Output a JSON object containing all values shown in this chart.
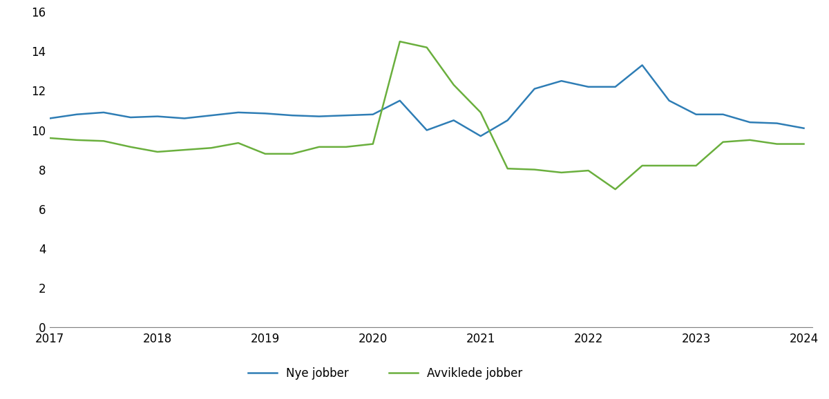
{
  "nye_jobber": {
    "label": "Nye jobber",
    "color": "#2E7DB5",
    "x": [
      2017.0,
      2017.25,
      2017.5,
      2017.75,
      2018.0,
      2018.25,
      2018.5,
      2018.75,
      2019.0,
      2019.25,
      2019.5,
      2019.75,
      2020.0,
      2020.25,
      2020.5,
      2020.75,
      2021.0,
      2021.25,
      2021.5,
      2021.75,
      2022.0,
      2022.25,
      2022.5,
      2022.75,
      2023.0,
      2023.25,
      2023.5,
      2023.75,
      2024.0
    ],
    "y": [
      10.6,
      10.8,
      10.9,
      10.65,
      10.7,
      10.6,
      10.75,
      10.9,
      10.85,
      10.75,
      10.7,
      10.75,
      10.8,
      11.5,
      10.0,
      10.5,
      9.7,
      10.5,
      12.1,
      12.5,
      12.2,
      12.2,
      13.3,
      11.5,
      10.8,
      10.8,
      10.4,
      10.35,
      10.1
    ]
  },
  "avviklede_jobber": {
    "label": "Avviklede jobber",
    "color": "#6AAF3D",
    "x": [
      2017.0,
      2017.25,
      2017.5,
      2017.75,
      2018.0,
      2018.25,
      2018.5,
      2018.75,
      2019.0,
      2019.25,
      2019.5,
      2019.75,
      2020.0,
      2020.25,
      2020.5,
      2020.75,
      2021.0,
      2021.25,
      2021.5,
      2021.75,
      2022.0,
      2022.25,
      2022.5,
      2022.75,
      2023.0,
      2023.25,
      2023.5,
      2023.75,
      2024.0
    ],
    "y": [
      9.6,
      9.5,
      9.45,
      9.15,
      8.9,
      9.0,
      9.1,
      9.35,
      8.8,
      8.8,
      9.15,
      9.15,
      9.3,
      14.5,
      14.2,
      12.3,
      10.9,
      8.05,
      8.0,
      7.85,
      7.95,
      7.0,
      8.2,
      8.2,
      8.2,
      9.4,
      9.5,
      9.3,
      9.3
    ]
  },
  "xlim": [
    2017.0,
    2024.08
  ],
  "ylim": [
    0,
    16
  ],
  "yticks": [
    0,
    2,
    4,
    6,
    8,
    10,
    12,
    14,
    16
  ],
  "xticks": [
    2017,
    2018,
    2019,
    2020,
    2021,
    2022,
    2023,
    2024
  ],
  "line_width": 1.8,
  "legend_fontsize": 12,
  "tick_fontsize": 12,
  "background_color": "#ffffff"
}
